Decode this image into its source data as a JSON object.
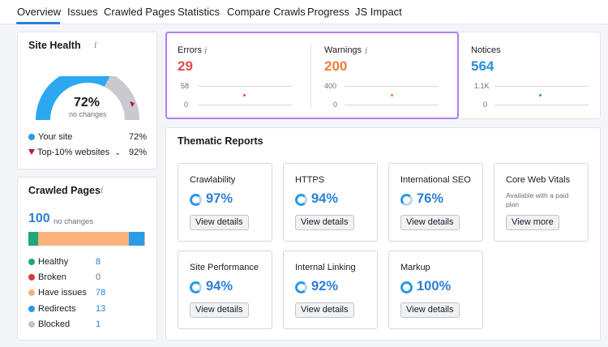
{
  "nav": {
    "tabs": [
      "Overview",
      "Issues",
      "Crawled Pages",
      "Statistics",
      "Compare Crawls",
      "Progress",
      "JS Impact"
    ],
    "active": "Overview"
  },
  "site_health": {
    "title": "Site Health",
    "score": "72%",
    "score_sub": "no changes",
    "score_value": 72,
    "top10_value": 92,
    "legend": [
      {
        "label": "Your site",
        "value": "72%",
        "color": "#2b9be6"
      },
      {
        "label": "Top-10% websites",
        "value": "92%",
        "color": "#b7183a"
      }
    ]
  },
  "crawled_pages": {
    "title": "Crawled Pages",
    "total": "100",
    "total_sub": "no changes",
    "rows": [
      {
        "label": "Healthy",
        "value": "8",
        "count": 8,
        "color": "#1fa67a"
      },
      {
        "label": "Broken",
        "value": "0",
        "count": 0,
        "color": "#d93a3a"
      },
      {
        "label": "Have issues",
        "value": "78",
        "count": 78,
        "color": "#f8b27a"
      },
      {
        "label": "Redirects",
        "value": "13",
        "count": 13,
        "color": "#2b9be6"
      },
      {
        "label": "Blocked",
        "value": "1",
        "count": 1,
        "color": "#c2c4cb"
      }
    ]
  },
  "metrics": [
    {
      "label": "Errors",
      "value": "29",
      "color": "#e54a4a",
      "axis_top": "58",
      "axis_bottom": "0"
    },
    {
      "label": "Warnings",
      "value": "200",
      "color": "#ee7d3d",
      "axis_top": "400",
      "axis_bottom": "0"
    },
    {
      "label": "Notices",
      "value": "564",
      "color": "#2b8fd6",
      "axis_top": "1.1K",
      "axis_bottom": "0"
    }
  ],
  "thematic": {
    "title": "Thematic Reports",
    "tiles": [
      {
        "title": "Crawlability",
        "pct": "97%",
        "button": "View details"
      },
      {
        "title": "HTTPS",
        "pct": "94%",
        "button": "View details"
      },
      {
        "title": "International SEO",
        "pct": "76%",
        "button": "View details"
      },
      {
        "title": "Core Web Vitals",
        "note": "Available with a paid plan",
        "button": "View more"
      },
      {
        "title": "Site Performance",
        "pct": "94%",
        "button": "View details"
      },
      {
        "title": "Internal Linking",
        "pct": "92%",
        "button": "View details"
      },
      {
        "title": "Markup",
        "pct": "100%",
        "button": "View details"
      }
    ]
  },
  "icons": {
    "info": "info-icon",
    "chevron": "chevron-down-icon"
  }
}
